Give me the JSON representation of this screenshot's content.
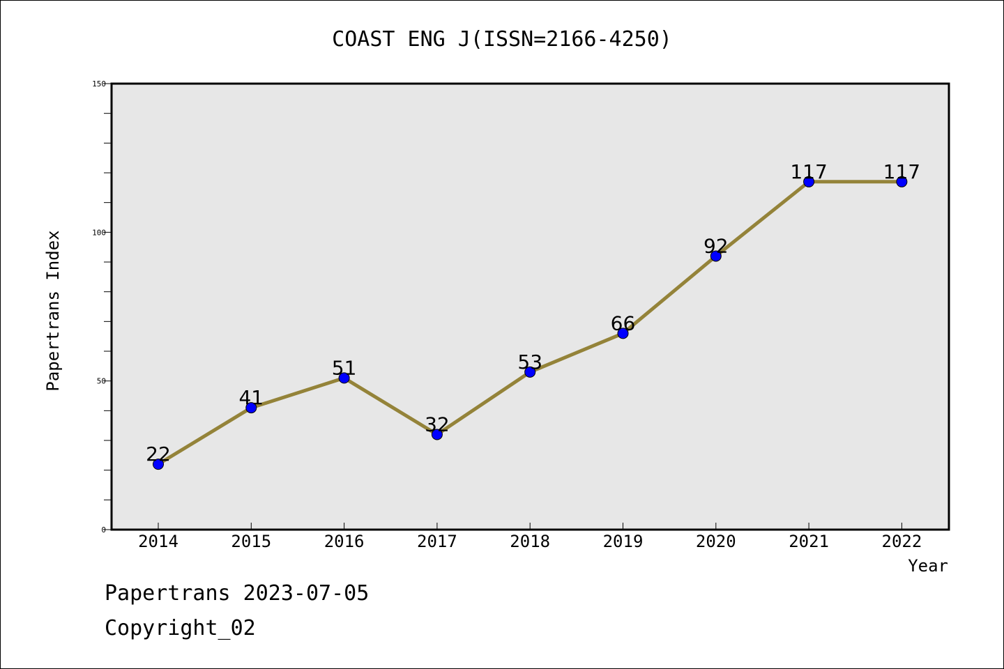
{
  "chart_data": {
    "type": "line",
    "title": "COAST ENG J(ISSN=2166-4250)",
    "xlabel": "Year",
    "ylabel": "Papertrans Index",
    "categories": [
      "2014",
      "2015",
      "2016",
      "2017",
      "2018",
      "2019",
      "2020",
      "2021",
      "2022"
    ],
    "series": [
      {
        "values": [
          22,
          41,
          51,
          32,
          53,
          66,
          92,
          117,
          117
        ]
      }
    ],
    "data_labels": [
      "22",
      "41",
      "51",
      "32",
      "53",
      "66",
      "92",
      "117",
      "117"
    ],
    "ylim": [
      0,
      150
    ],
    "yticks": [
      0,
      50,
      100,
      150
    ],
    "ytick_labels": [
      "0",
      "50",
      "100",
      "150"
    ],
    "grid": false,
    "colors": {
      "line": "#948339",
      "marker": "#0000ff",
      "plot_background": "#e7e7e7"
    }
  },
  "footer": {
    "line1": "Papertrans 2023-07-05",
    "line2": "Copyright_02"
  }
}
